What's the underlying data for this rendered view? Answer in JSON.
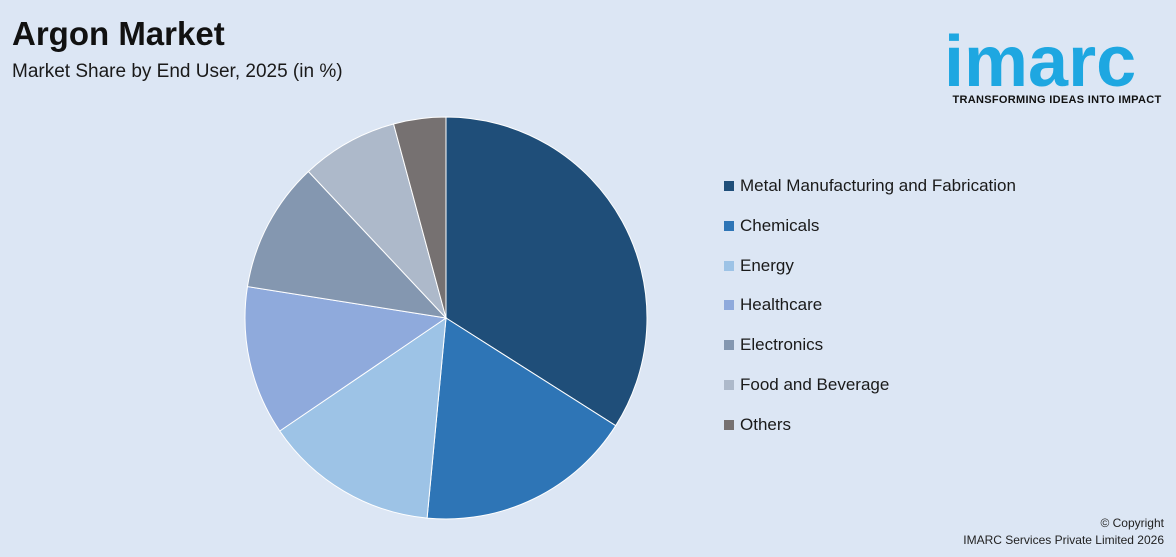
{
  "header": {
    "title": "Argon Market",
    "subtitle": "Market Share by End User, 2025 (in %)"
  },
  "logo": {
    "wordmark": "imarc",
    "tagline": "TRANSFORMING IDEAS INTO IMPACT",
    "color": "#1ea7e1"
  },
  "footer": {
    "copyright_line1": "© Copyright",
    "copyright_line2": "IMARC Services Private Limited 2026"
  },
  "chart_data": {
    "type": "pie",
    "title": "Argon Market",
    "subtitle": "Market Share by End User, 2025 (in %)",
    "legend_position": "right",
    "slices": [
      {
        "label": "Metal Manufacturing and Fabrication",
        "value": 34.0,
        "color": "#1f4e79"
      },
      {
        "label": "Chemicals",
        "value": 17.5,
        "color": "#2e75b6"
      },
      {
        "label": "Energy",
        "value": 14.0,
        "color": "#9dc3e6"
      },
      {
        "label": "Healthcare",
        "value": 12.0,
        "color": "#8faadc"
      },
      {
        "label": "Electronics",
        "value": 10.5,
        "color": "#8497b0"
      },
      {
        "label": "Food and Beverage",
        "value": 7.8,
        "color": "#adb9ca"
      },
      {
        "label": "Others",
        "value": 4.2,
        "color": "#767171"
      }
    ]
  }
}
